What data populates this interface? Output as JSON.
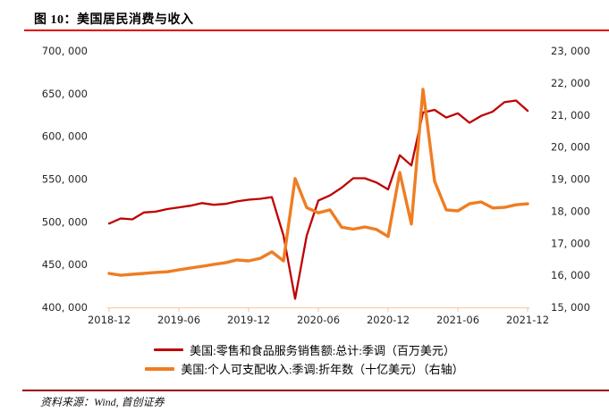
{
  "header": {
    "title": "图 10：美国居民消费与收入"
  },
  "footer": {
    "source": "资料来源：Wind, 首创证券"
  },
  "colors": {
    "title_rule": "#e10600",
    "footer_rule": "#990000",
    "axis_line": "#f9cda9",
    "axis_text": "#262626",
    "retail_line": "#c00000",
    "income_line": "#ef7d22"
  },
  "chart_data": {
    "type": "line",
    "title": "美国居民消费与收入",
    "grid": false,
    "legend_position": "bottom",
    "x": [
      "2018-12",
      "2019-01",
      "2019-02",
      "2019-03",
      "2019-04",
      "2019-05",
      "2019-06",
      "2019-07",
      "2019-08",
      "2019-09",
      "2019-10",
      "2019-11",
      "2019-12",
      "2020-01",
      "2020-02",
      "2020-03",
      "2020-04",
      "2020-05",
      "2020-06",
      "2020-07",
      "2020-08",
      "2020-09",
      "2020-10",
      "2020-11",
      "2020-12",
      "2021-01",
      "2021-02",
      "2021-03",
      "2021-04",
      "2021-05",
      "2021-06",
      "2021-07",
      "2021-08",
      "2021-09",
      "2021-10",
      "2021-11",
      "2021-12"
    ],
    "x_axis": {
      "tick_labels": [
        "2018-12",
        "2019-06",
        "2019-12",
        "2020-06",
        "2020-12",
        "2021-06",
        "2021-12"
      ],
      "tick_indices": [
        0,
        6,
        12,
        18,
        24,
        30,
        36
      ]
    },
    "y_left": {
      "min": 400000,
      "max": 700000,
      "tick_labels": [
        "700, 000",
        "650, 000",
        "600, 000",
        "550, 000",
        "500, 000",
        "450, 000",
        "400, 000"
      ],
      "tick_values": [
        700000,
        650000,
        600000,
        550000,
        500000,
        450000,
        400000
      ]
    },
    "y_right": {
      "min": 15000,
      "max": 23000,
      "tick_labels": [
        "23, 000",
        "22, 000",
        "21, 000",
        "20, 000",
        "19, 000",
        "18, 000",
        "17, 000",
        "16, 000",
        "15, 000"
      ],
      "tick_values": [
        23000,
        22000,
        21000,
        20000,
        19000,
        18000,
        17000,
        16000,
        15000
      ]
    },
    "series": [
      {
        "name": "美国:零售和食品服务销售额:总计:季调（百万美元）",
        "axis": "left",
        "color": "#c00000",
        "stroke_width": 2.3,
        "values": [
          498000,
          504000,
          503000,
          511000,
          512000,
          515000,
          517000,
          519000,
          522000,
          520000,
          521000,
          524000,
          526000,
          527000,
          529000,
          484000,
          410000,
          484000,
          525000,
          531000,
          540000,
          551000,
          551000,
          546000,
          538000,
          578000,
          566000,
          628000,
          631000,
          622000,
          627000,
          616000,
          624000,
          629000,
          640000,
          642000,
          630000
        ]
      },
      {
        "name": "美国:个人可支配收入:季调:折年数（十亿美元）（右轴）",
        "axis": "right",
        "color": "#ef7d22",
        "stroke_width": 3.4,
        "values": [
          16060,
          16000,
          16030,
          16060,
          16090,
          16110,
          16170,
          16230,
          16280,
          16340,
          16390,
          16480,
          16450,
          16530,
          16730,
          16450,
          19020,
          18110,
          17950,
          18040,
          17500,
          17440,
          17510,
          17430,
          17210,
          19210,
          17600,
          21800,
          18930,
          18040,
          18010,
          18230,
          18290,
          18100,
          18120,
          18200,
          18230
        ]
      }
    ]
  }
}
